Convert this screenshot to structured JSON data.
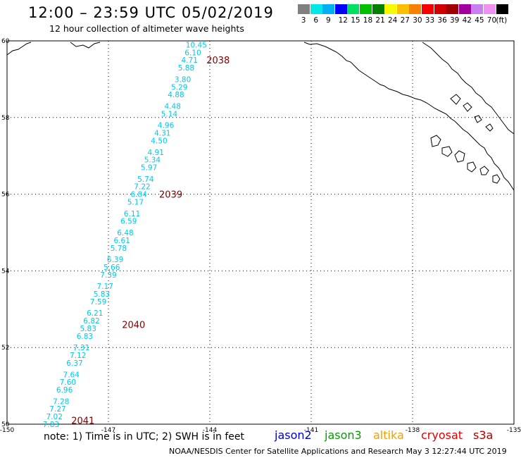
{
  "header": {
    "title": "12:00 – 23:59 UTC 05/02/2019",
    "subtitle": "12 hour collection of altimeter wave heights"
  },
  "colorbar": {
    "colors": [
      "#808080",
      "#00e8e8",
      "#00b0f0",
      "#0000ff",
      "#00e060",
      "#00c000",
      "#008000",
      "#f8f800",
      "#f8c000",
      "#f88000",
      "#f80000",
      "#d00000",
      "#a00000",
      "#a000a0",
      "#c880f0",
      "#f090f0",
      "#000000"
    ],
    "labels": [
      "3",
      "6",
      "9",
      "12",
      "15",
      "18",
      "21",
      "24",
      "27",
      "30",
      "33",
      "36",
      "39",
      "42",
      "45",
      "70",
      "(ft)"
    ]
  },
  "map": {
    "lon_range": [
      -150,
      -135
    ],
    "lat_range": [
      50,
      60
    ],
    "lon_ticks": [
      "-150",
      "-147",
      "-144",
      "-141",
      "-138",
      "-135"
    ],
    "lat_ticks": [
      "60",
      "58",
      "56",
      "54",
      "52",
      "50"
    ],
    "grid": true,
    "track_color": "#00c8e8",
    "time_color": "#800000",
    "track": [
      {
        "lat": 59.9,
        "lon": -144.4,
        "swh": "10.45"
      },
      {
        "lat": 59.7,
        "lon": -144.5,
        "swh": "6.10"
      },
      {
        "lat": 59.5,
        "lon": -144.6,
        "swh": "4.71"
      },
      {
        "lat": 59.3,
        "lon": -144.7,
        "swh": "5.88"
      },
      {
        "lat": 59.0,
        "lon": -144.8,
        "swh": "3.80"
      },
      {
        "lat": 58.8,
        "lon": -144.9,
        "swh": "5.29"
      },
      {
        "lat": 58.6,
        "lon": -145.0,
        "swh": "4.88"
      },
      {
        "lat": 58.3,
        "lon": -145.1,
        "swh": "4.48"
      },
      {
        "lat": 58.1,
        "lon": -145.2,
        "swh": "5.14"
      },
      {
        "lat": 57.8,
        "lon": -145.3,
        "swh": "4.96"
      },
      {
        "lat": 57.6,
        "lon": -145.4,
        "swh": "4.31"
      },
      {
        "lat": 57.4,
        "lon": -145.5,
        "swh": "4.50"
      },
      {
        "lat": 57.1,
        "lon": -145.6,
        "swh": "4.91"
      },
      {
        "lat": 56.9,
        "lon": -145.7,
        "swh": "5.34"
      },
      {
        "lat": 56.7,
        "lon": -145.8,
        "swh": "5.97"
      },
      {
        "lat": 56.4,
        "lon": -145.9,
        "swh": "5.74"
      },
      {
        "lat": 56.2,
        "lon": -146.0,
        "swh": "7.22"
      },
      {
        "lat": 56.0,
        "lon": -146.1,
        "swh": "6.84"
      },
      {
        "lat": 55.8,
        "lon": -146.2,
        "swh": "5.17"
      },
      {
        "lat": 55.5,
        "lon": -146.3,
        "swh": "6.11"
      },
      {
        "lat": 55.3,
        "lon": -146.4,
        "swh": "6.59"
      },
      {
        "lat": 55.0,
        "lon": -146.5,
        "swh": "6.48"
      },
      {
        "lat": 54.8,
        "lon": -146.6,
        "swh": "6.61"
      },
      {
        "lat": 54.6,
        "lon": -146.7,
        "swh": "5.78"
      },
      {
        "lat": 54.3,
        "lon": -146.8,
        "swh": "6.39"
      },
      {
        "lat": 54.1,
        "lon": -146.9,
        "swh": "5.66"
      },
      {
        "lat": 53.9,
        "lon": -147.0,
        "swh": "7.39"
      },
      {
        "lat": 53.6,
        "lon": -147.1,
        "swh": "7.17"
      },
      {
        "lat": 53.4,
        "lon": -147.2,
        "swh": "5.83"
      },
      {
        "lat": 53.2,
        "lon": -147.3,
        "swh": "7.59"
      },
      {
        "lat": 52.9,
        "lon": -147.4,
        "swh": "6.21"
      },
      {
        "lat": 52.7,
        "lon": -147.5,
        "swh": "6.82"
      },
      {
        "lat": 52.5,
        "lon": -147.6,
        "swh": "5.83"
      },
      {
        "lat": 52.3,
        "lon": -147.7,
        "swh": "6.83"
      },
      {
        "lat": 52.0,
        "lon": -147.8,
        "swh": "7.31"
      },
      {
        "lat": 51.8,
        "lon": -147.9,
        "swh": "7.12"
      },
      {
        "lat": 51.6,
        "lon": -148.0,
        "swh": "6.37"
      },
      {
        "lat": 51.3,
        "lon": -148.1,
        "swh": "7.64"
      },
      {
        "lat": 51.1,
        "lon": -148.2,
        "swh": "7.60"
      },
      {
        "lat": 50.9,
        "lon": -148.3,
        "swh": "6.96"
      },
      {
        "lat": 50.6,
        "lon": -148.4,
        "swh": "7.28"
      },
      {
        "lat": 50.4,
        "lon": -148.5,
        "swh": "7.27"
      },
      {
        "lat": 50.2,
        "lon": -148.6,
        "swh": "7.02"
      },
      {
        "lat": 50.0,
        "lon": -148.7,
        "swh": "7.83"
      }
    ],
    "times": [
      {
        "lat": 59.5,
        "lon": -144.1,
        "label": "2038"
      },
      {
        "lat": 56.0,
        "lon": -145.5,
        "label": "2039"
      },
      {
        "lat": 52.6,
        "lon": -146.6,
        "label": "2040"
      },
      {
        "lat": 50.1,
        "lon": -148.1,
        "label": "2041"
      }
    ]
  },
  "footer": {
    "note": "note:  1)  Time is in UTC;  2)  SWH is in feet",
    "legend": [
      {
        "name": "jason2",
        "color": "#0000d0"
      },
      {
        "name": "jason3",
        "color": "#00a000"
      },
      {
        "name": "altika",
        "color": "#f0a000"
      },
      {
        "name": "cryosat",
        "color": "#e00000"
      },
      {
        "name": "s3a",
        "color": "#b00000"
      }
    ],
    "credit": "NOAA/NESDIS Center for Satellite Applications and Research     May  3 12:27:44 UTC 2019"
  }
}
